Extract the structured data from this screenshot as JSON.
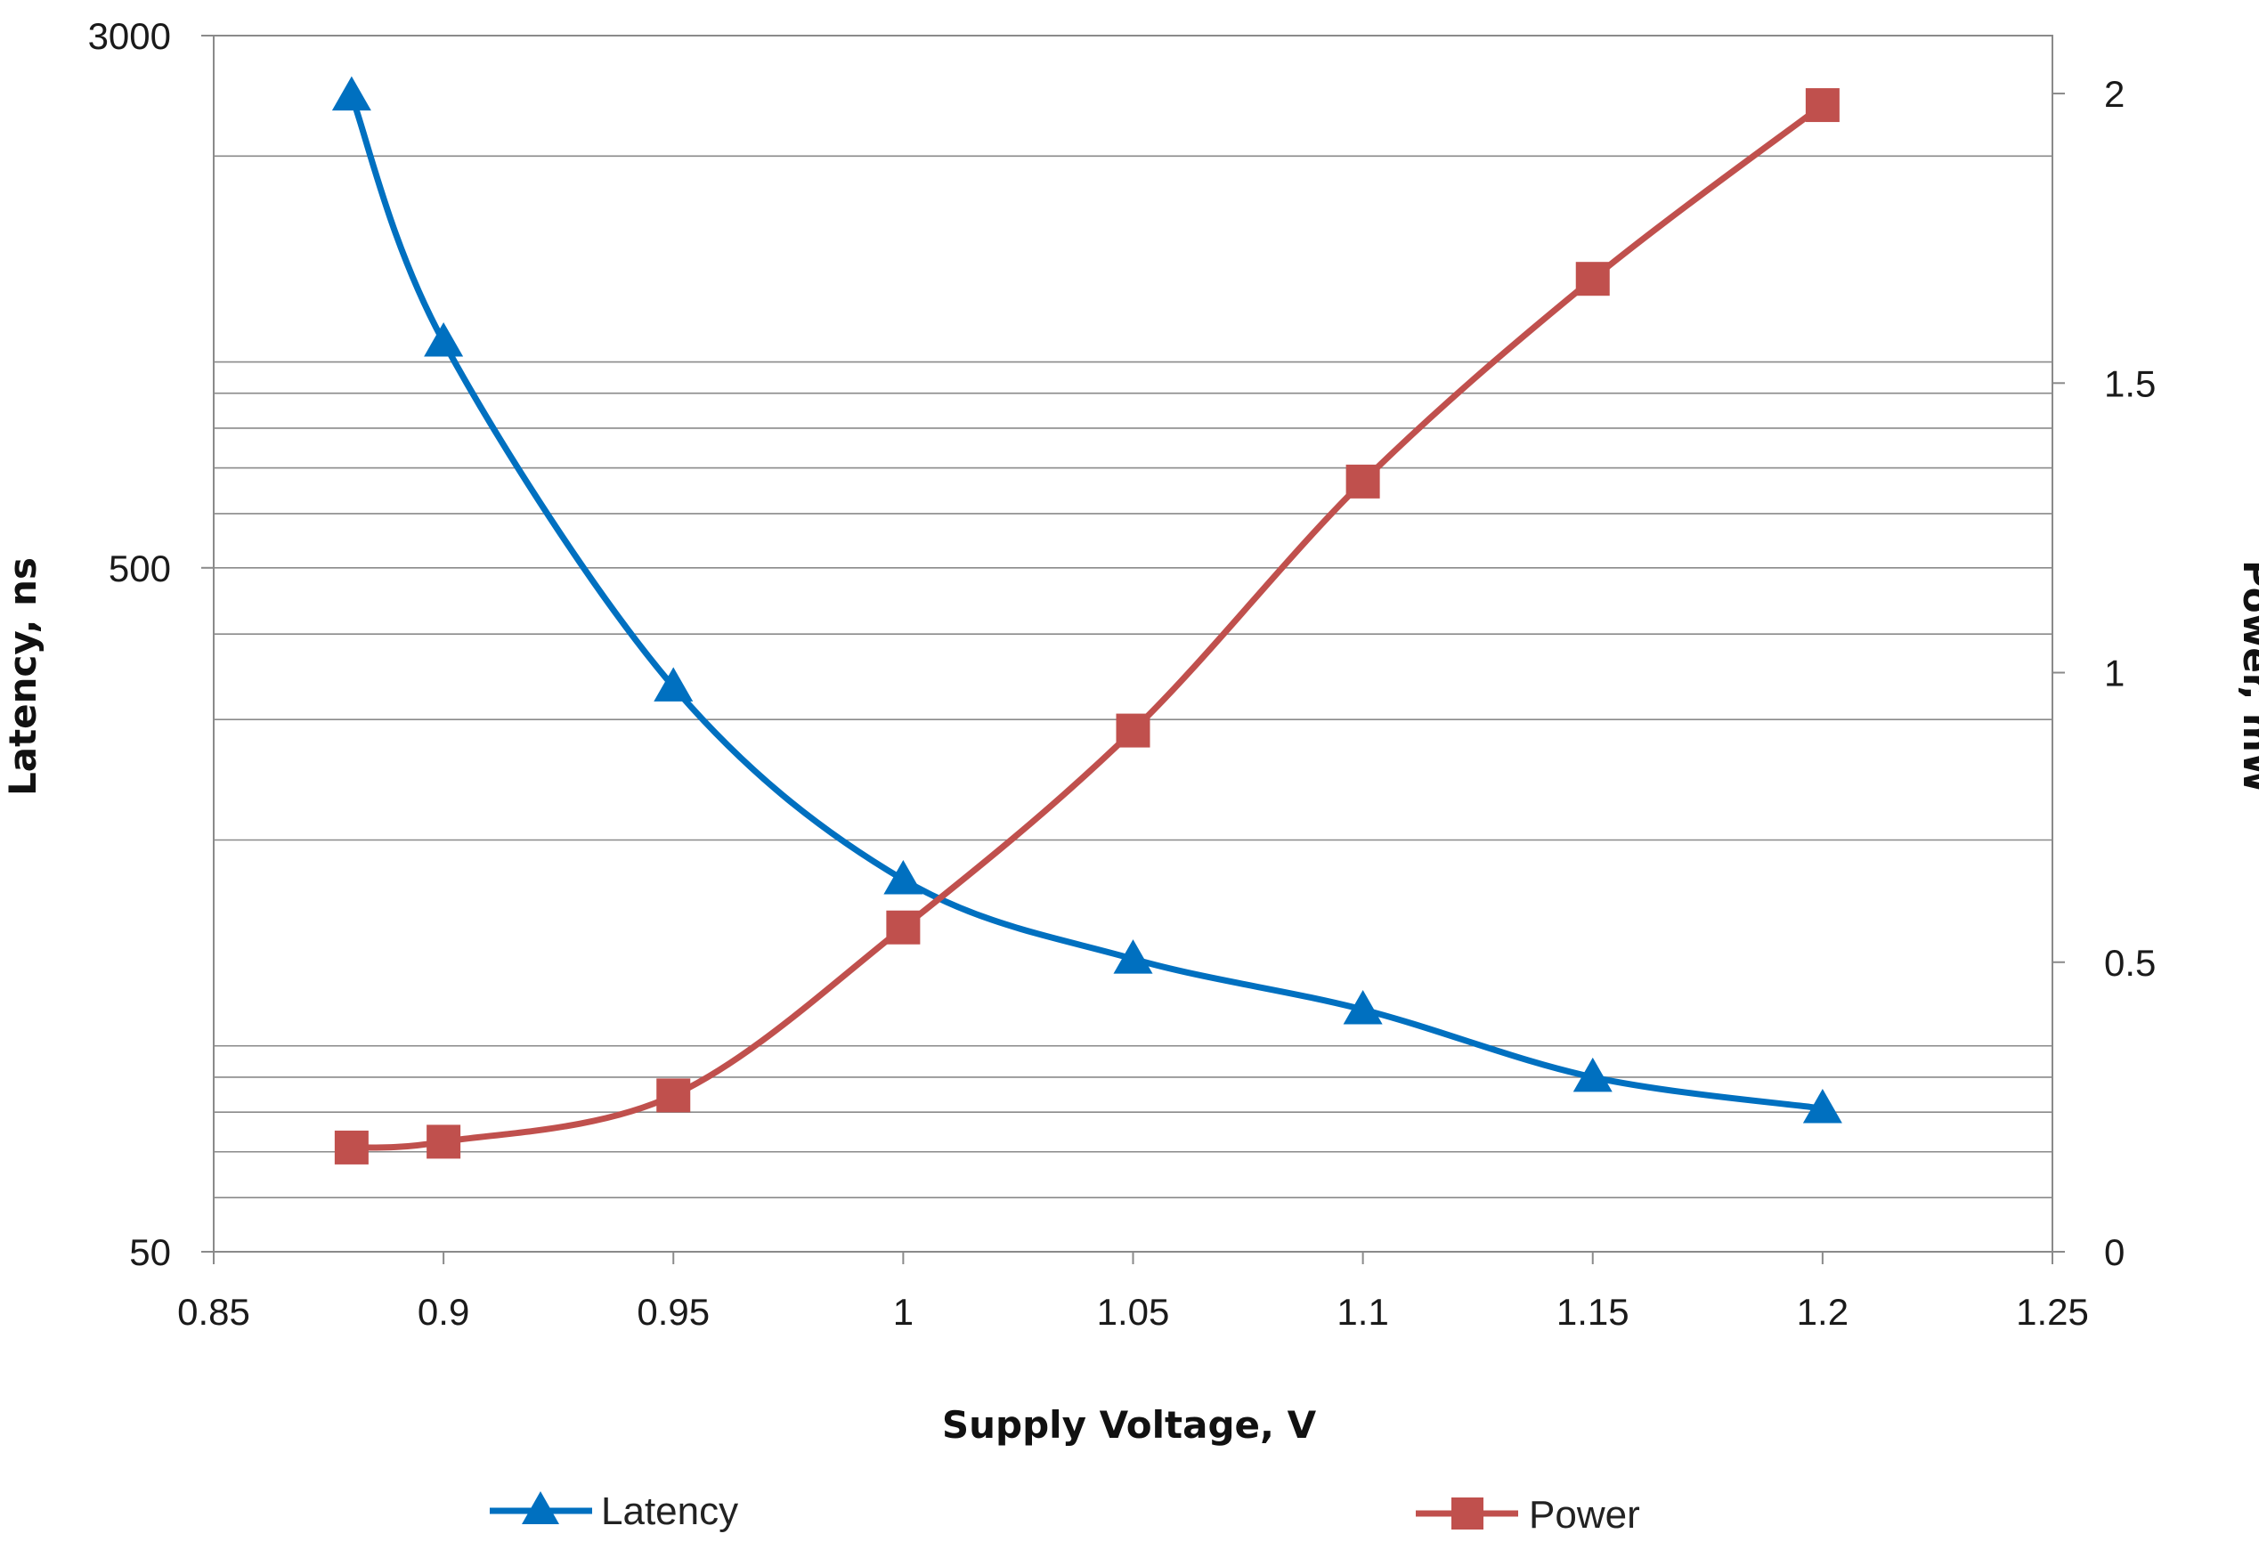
{
  "chart_data": {
    "type": "line",
    "title": "",
    "xlabel": "Supply Voltage, V",
    "ylabel": "Latency, ns",
    "y2label": "Power, mW",
    "xlim": [
      0.85,
      1.25
    ],
    "x_ticks": [
      0.85,
      0.9,
      0.95,
      1,
      1.05,
      1.1,
      1.15,
      1.2,
      1.25
    ],
    "x_tick_labels": [
      "0.85",
      "0.9",
      "0.95",
      "1",
      "1.05",
      "1.1",
      "1.15",
      "1.2",
      "1.25"
    ],
    "y_scale": "log",
    "ylim": [
      50,
      3000
    ],
    "y_tick_labels": [
      "50",
      "500",
      "3000"
    ],
    "y2lim": [
      0,
      2.1
    ],
    "y2_tick_labels": [
      "0",
      "0.5",
      "1",
      "1.5",
      "2"
    ],
    "legend_position": "bottom",
    "series": [
      {
        "name": "Latency",
        "axis": "left",
        "color": "#0070C0",
        "marker": "triangle",
        "x": [
          0.88,
          0.9,
          0.95,
          1,
          1.05,
          1.1,
          1.15,
          1.2
        ],
        "values": [
          2450,
          1070,
          335,
          175,
          134,
          113,
          90,
          81
        ]
      },
      {
        "name": "Power",
        "axis": "right",
        "color": "#C0504D",
        "marker": "square",
        "x": [
          0.88,
          0.9,
          0.95,
          1,
          1.05,
          1.1,
          1.15,
          1.2
        ],
        "values": [
          0.18,
          0.19,
          0.27,
          0.56,
          0.9,
          1.33,
          1.68,
          1.98
        ]
      }
    ]
  }
}
